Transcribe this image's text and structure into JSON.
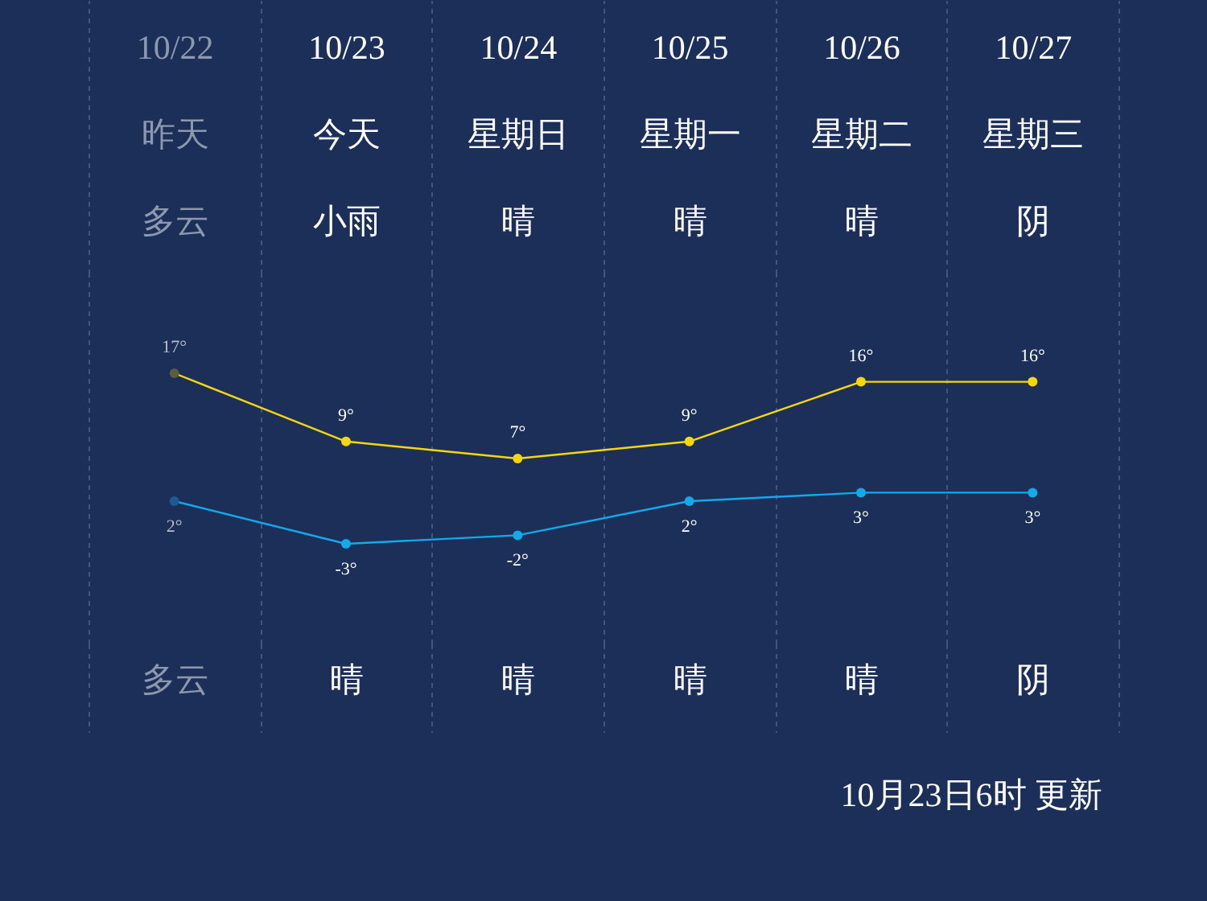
{
  "chart_data": {
    "type": "line",
    "categories": [
      "10/22",
      "10/23",
      "10/24",
      "10/25",
      "10/26",
      "10/27"
    ],
    "series": [
      {
        "color": "#f5d80c",
        "colors": [
          "#5b5d3e",
          "#f5d80c",
          "#f5d80c",
          "#f5d80c",
          "#f5d80c",
          "#f5d80c"
        ],
        "values": [
          17,
          9,
          7,
          9,
          16,
          16
        ],
        "value_labels": [
          "17°",
          "9°",
          "7°",
          "9°",
          "16°",
          "16°"
        ]
      },
      {
        "color": "#12aaea",
        "colors": [
          "#1d5a94",
          "#12aaea",
          "#12aaea",
          "#12aaea",
          "#12aaea",
          "#12aaea"
        ],
        "values": [
          2,
          -3,
          -2,
          2,
          3,
          3
        ],
        "value_labels": [
          "2°",
          "-3°",
          "-2°",
          "2°",
          "3°",
          "3°"
        ]
      }
    ],
    "annotations": [
      "昨天",
      "今天",
      "星期日",
      "星期一",
      "星期二",
      "星期三",
      "多云",
      "小雨",
      "晴",
      "晴",
      "晴",
      "阴",
      "多云",
      "晴",
      "晴",
      "晴",
      "晴",
      "阴",
      "10月23日6时 更新"
    ],
    "grid": "x",
    "marker": "circle",
    "tick_labels": "x"
  }
}
